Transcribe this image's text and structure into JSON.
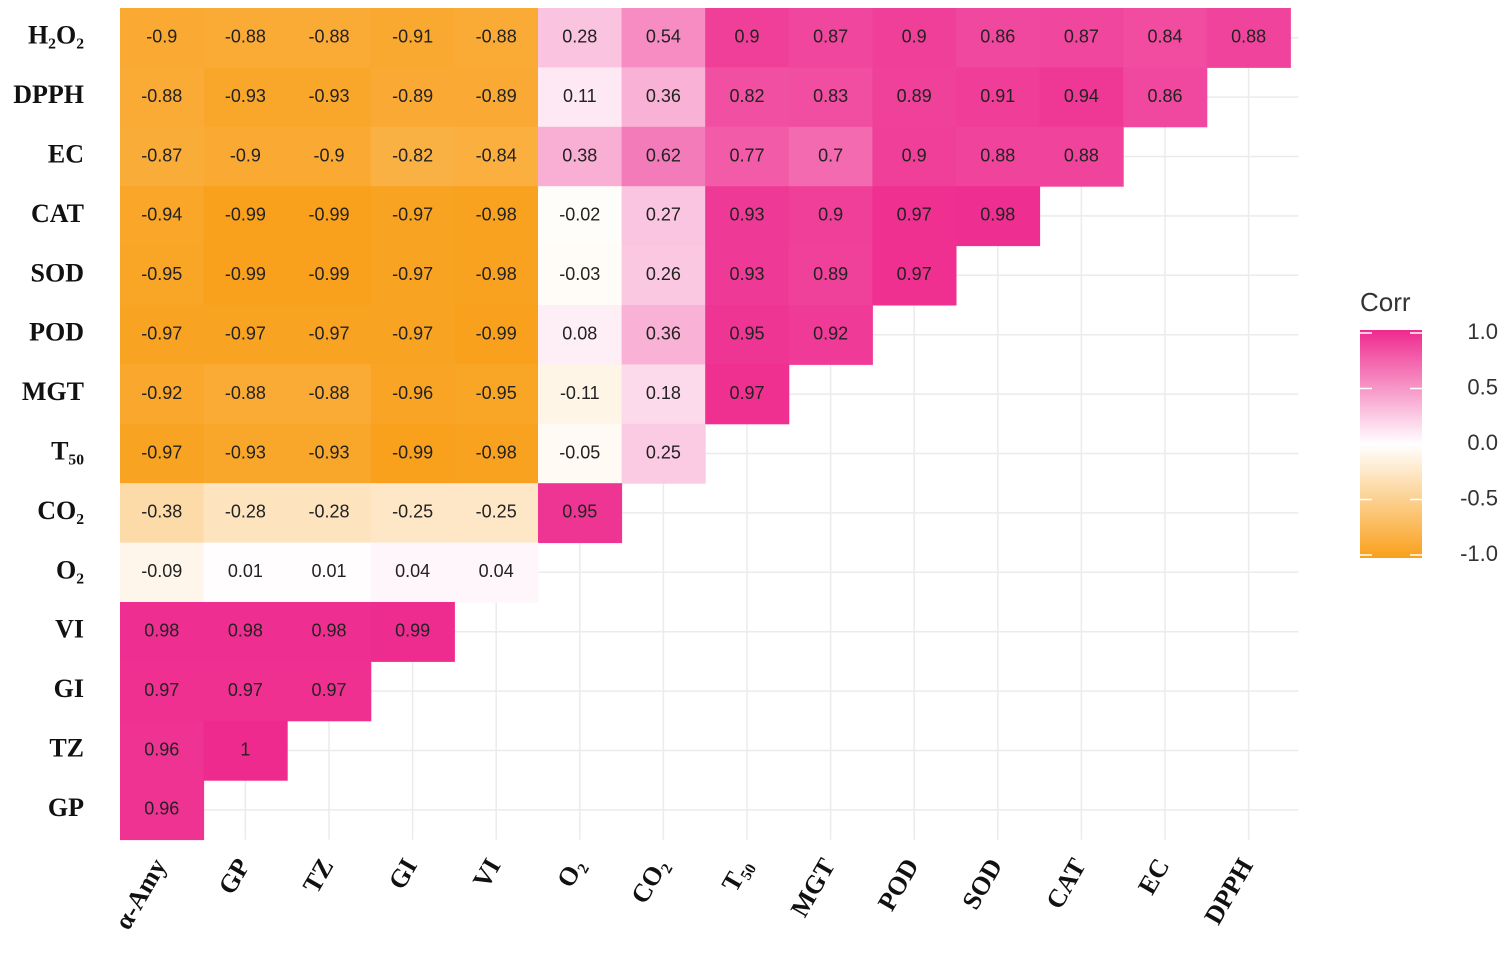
{
  "chart_data": {
    "type": "heatmap",
    "columns": [
      "α-Amy",
      "GP",
      "TZ",
      "GI",
      "VI",
      "O₂",
      "CO₂",
      "T₅₀",
      "MGT",
      "POD",
      "SOD",
      "CAT",
      "EC",
      "DPPH"
    ],
    "rows": [
      "H₂O₂",
      "DPPH",
      "EC",
      "CAT",
      "SOD",
      "POD",
      "MGT",
      "T₅₀",
      "CO₂",
      "O₂",
      "VI",
      "GI",
      "TZ",
      "GP"
    ],
    "values": [
      [
        -0.9,
        -0.88,
        -0.88,
        -0.91,
        -0.88,
        0.28,
        0.54,
        0.9,
        0.87,
        0.9,
        0.86,
        0.87,
        0.84,
        0.88
      ],
      [
        -0.88,
        -0.93,
        -0.93,
        -0.89,
        -0.89,
        0.11,
        0.36,
        0.82,
        0.83,
        0.89,
        0.91,
        0.94,
        0.86,
        null
      ],
      [
        -0.87,
        -0.9,
        -0.9,
        -0.82,
        -0.84,
        0.38,
        0.62,
        0.77,
        0.7,
        0.9,
        0.88,
        0.88,
        null,
        null
      ],
      [
        -0.94,
        -0.99,
        -0.99,
        -0.97,
        -0.98,
        -0.02,
        0.27,
        0.93,
        0.9,
        0.97,
        0.98,
        null,
        null,
        null
      ],
      [
        -0.95,
        -0.99,
        -0.99,
        -0.97,
        -0.98,
        -0.03,
        0.26,
        0.93,
        0.89,
        0.97,
        null,
        null,
        null,
        null
      ],
      [
        -0.97,
        -0.97,
        -0.97,
        -0.97,
        -0.99,
        0.08,
        0.36,
        0.95,
        0.92,
        null,
        null,
        null,
        null,
        null
      ],
      [
        -0.92,
        -0.88,
        -0.88,
        -0.96,
        -0.95,
        -0.11,
        0.18,
        0.97,
        null,
        null,
        null,
        null,
        null,
        null
      ],
      [
        -0.97,
        -0.93,
        -0.93,
        -0.99,
        -0.98,
        -0.05,
        0.25,
        null,
        null,
        null,
        null,
        null,
        null,
        null
      ],
      [
        -0.38,
        -0.28,
        -0.28,
        -0.25,
        -0.25,
        0.95,
        null,
        null,
        null,
        null,
        null,
        null,
        null,
        null
      ],
      [
        -0.09,
        0.01,
        0.01,
        0.04,
        0.04,
        null,
        null,
        null,
        null,
        null,
        null,
        null,
        null,
        null
      ],
      [
        0.98,
        0.98,
        0.98,
        0.99,
        null,
        null,
        null,
        null,
        null,
        null,
        null,
        null,
        null,
        null
      ],
      [
        0.97,
        0.97,
        0.97,
        null,
        null,
        null,
        null,
        null,
        null,
        null,
        null,
        null,
        null,
        null
      ],
      [
        0.96,
        1,
        null,
        null,
        null,
        null,
        null,
        null,
        null,
        null,
        null,
        null,
        null,
        null
      ],
      [
        0.96,
        null,
        null,
        null,
        null,
        null,
        null,
        null,
        null,
        null,
        null,
        null,
        null,
        null
      ]
    ],
    "legend_title": "Corr",
    "clim": [
      -1,
      1
    ],
    "legend_ticks": [
      {
        "value": 1,
        "label": "1.0"
      },
      {
        "value": 0.5,
        "label": "0.5"
      },
      {
        "value": 0,
        "label": "0.0"
      },
      {
        "value": -0.5,
        "label": "-0.5"
      },
      {
        "value": -1,
        "label": "-1.0"
      }
    ],
    "colors": {
      "low": "#f9a01b",
      "mid": "#ffffff",
      "high": "#ee2a8e"
    }
  }
}
